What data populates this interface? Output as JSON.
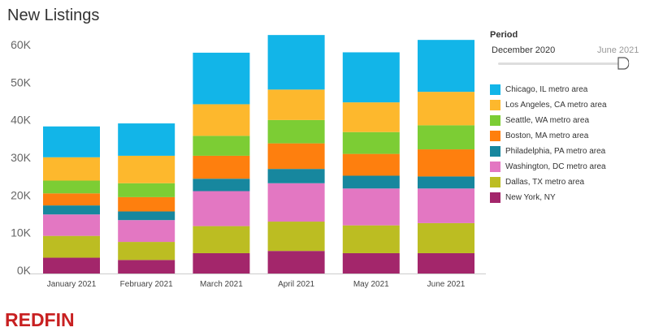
{
  "title": "New Listings",
  "period": {
    "title": "Period",
    "start": "December 2020",
    "end": "June 2021"
  },
  "brand": {
    "name": "REDFIN",
    "color": "#c82021"
  },
  "chart_data": {
    "type": "bar",
    "stacked": true,
    "categories": [
      "January 2021",
      "February 2021",
      "March 2021",
      "April 2021",
      "May 2021",
      "June 2021"
    ],
    "yticks": [
      0,
      10000,
      20000,
      30000,
      40000,
      50000,
      60000
    ],
    "ytick_labels": [
      "0K",
      "10K",
      "20K",
      "30K",
      "40K",
      "50K",
      "60K"
    ],
    "ylim": [
      0,
      63000
    ],
    "series": [
      {
        "name": "New York, NY",
        "color": "#a3266b",
        "values": [
          4200,
          3600,
          5400,
          6000,
          5400,
          5400
        ]
      },
      {
        "name": "Dallas, TX metro area",
        "color": "#bcbd22",
        "values": [
          5800,
          4800,
          7200,
          7800,
          7400,
          8000
        ]
      },
      {
        "name": "Washington, DC metro area",
        "color": "#e377c2",
        "values": [
          5700,
          5800,
          9300,
          10200,
          9800,
          9200
        ]
      },
      {
        "name": "Philadelphia, PA metro area",
        "color": "#17879e",
        "values": [
          2400,
          2300,
          3300,
          3800,
          3400,
          3200
        ]
      },
      {
        "name": "Boston, MA metro area",
        "color": "#fe7f0e",
        "values": [
          3200,
          3800,
          6100,
          6800,
          5800,
          7200
        ]
      },
      {
        "name": "Seattle, WA metro area",
        "color": "#7ccd34",
        "values": [
          3400,
          3700,
          5300,
          6200,
          5800,
          6400
        ]
      },
      {
        "name": "Los Angeles, CA metro area",
        "color": "#fdb82d",
        "values": [
          6200,
          7300,
          8400,
          8100,
          7900,
          8900
        ]
      },
      {
        "name": "Chicago, IL metro area",
        "color": "#12b5e8",
        "values": [
          8200,
          8600,
          13700,
          14500,
          13300,
          13800
        ]
      }
    ]
  }
}
